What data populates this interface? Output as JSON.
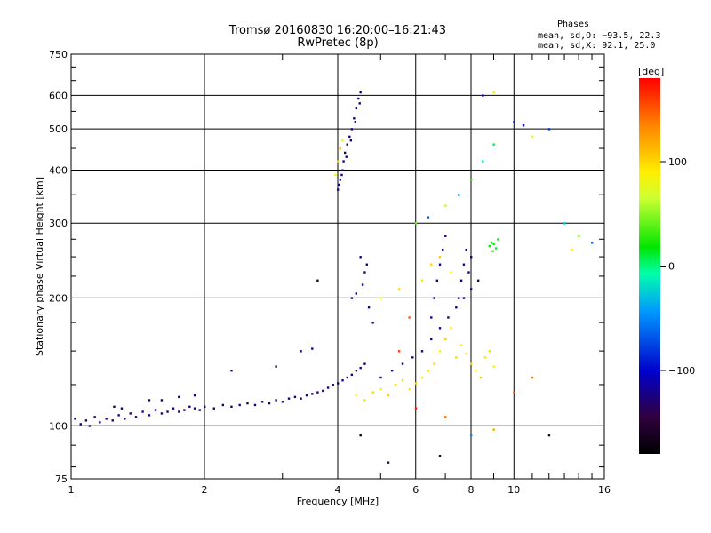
{
  "chart_data": {
    "type": "scatter",
    "title": "Tromsø 20160830 16:20:00–16:21:43",
    "subtitle": "RwPretec (8p)",
    "xlabel": "Frequency [MHz]",
    "ylabel": "Stationary phase Virtual Height [km]",
    "x_scale": "log",
    "y_scale": "log",
    "xlim": [
      1,
      16
    ],
    "ylim": [
      75,
      750
    ],
    "x_ticks": [
      1,
      2,
      4,
      6,
      8,
      10,
      16
    ],
    "x_tick_labels": [
      "1",
      "2",
      "4",
      "6",
      "8",
      "10",
      "16"
    ],
    "y_ticks": [
      75,
      100,
      200,
      300,
      400,
      500,
      600,
      750
    ],
    "y_tick_labels": [
      "75",
      "100",
      "200",
      "300",
      "400",
      "500",
      "600",
      "750"
    ],
    "grid": true,
    "phase_stats": {
      "title": "Phases",
      "line_o": "mean, sd,O: −93.5, 22.3",
      "line_x": "mean, sd,X:  92.1, 25.0"
    },
    "colorbar": {
      "label": "[deg]",
      "range": [
        -180,
        180
      ],
      "ticks": [
        100,
        0,
        -100
      ],
      "tick_labels": [
        "100",
        "0",
        "−100"
      ]
    },
    "series": [
      {
        "points": [
          [
            1.02,
            104,
            -120
          ],
          [
            1.05,
            101,
            -130
          ],
          [
            1.08,
            103,
            -140
          ],
          [
            1.1,
            100,
            -125
          ],
          [
            1.13,
            105,
            -135
          ],
          [
            1.16,
            102,
            -120
          ],
          [
            1.2,
            104,
            -130
          ],
          [
            1.24,
            103,
            -145
          ],
          [
            1.28,
            106,
            -125
          ],
          [
            1.32,
            104,
            -120
          ],
          [
            1.36,
            107,
            -130
          ],
          [
            1.4,
            105,
            -140
          ],
          [
            1.45,
            108,
            -125
          ],
          [
            1.5,
            106,
            -120
          ],
          [
            1.55,
            109,
            -130
          ],
          [
            1.6,
            107,
            -135
          ],
          [
            1.65,
            108,
            -125
          ],
          [
            1.7,
            110,
            -120
          ],
          [
            1.75,
            108,
            -130
          ],
          [
            1.8,
            109,
            -140
          ],
          [
            1.85,
            111,
            -125
          ],
          [
            1.9,
            110,
            -120
          ],
          [
            1.95,
            109,
            -130
          ],
          [
            2.0,
            111,
            -125
          ],
          [
            2.1,
            110,
            -135
          ],
          [
            2.2,
            112,
            -120
          ],
          [
            2.3,
            111,
            -130
          ],
          [
            2.4,
            112,
            -125
          ],
          [
            2.5,
            113,
            -140
          ],
          [
            2.6,
            112,
            -120
          ],
          [
            2.7,
            114,
            -130
          ],
          [
            2.8,
            113,
            -125
          ],
          [
            2.9,
            115,
            -135
          ],
          [
            3.0,
            114,
            -120
          ],
          [
            3.1,
            116,
            -130
          ],
          [
            3.2,
            117,
            -125
          ],
          [
            3.3,
            116,
            -140
          ],
          [
            3.4,
            118,
            -120
          ],
          [
            3.5,
            119,
            -130
          ],
          [
            3.6,
            120,
            -125
          ],
          [
            3.7,
            121,
            -135
          ],
          [
            3.8,
            123,
            -120
          ],
          [
            3.9,
            125,
            -130
          ],
          [
            4.0,
            126,
            -125
          ],
          [
            4.1,
            128,
            -120
          ],
          [
            4.2,
            130,
            -130
          ],
          [
            4.3,
            132,
            -125
          ],
          [
            4.4,
            135,
            -135
          ],
          [
            4.5,
            137,
            -120
          ],
          [
            4.6,
            140,
            -130
          ],
          [
            1.3,
            110,
            -125
          ],
          [
            1.6,
            115,
            -130
          ],
          [
            1.9,
            118,
            -120
          ],
          [
            2.3,
            135,
            -125
          ],
          [
            2.9,
            138,
            -130
          ],
          [
            3.3,
            150,
            -120
          ],
          [
            3.5,
            152,
            -125
          ],
          [
            1.25,
            111,
            -135
          ],
          [
            1.5,
            115,
            -128
          ],
          [
            1.75,
            117,
            -132
          ]
        ]
      },
      {
        "points": [
          [
            4.0,
            360,
            -120
          ],
          [
            4.05,
            380,
            -125
          ],
          [
            4.1,
            400,
            -130
          ],
          [
            4.12,
            420,
            -120
          ],
          [
            4.15,
            440,
            -125
          ],
          [
            4.2,
            460,
            -130
          ],
          [
            4.25,
            480,
            -120
          ],
          [
            4.3,
            500,
            -125
          ],
          [
            4.35,
            530,
            -130
          ],
          [
            4.4,
            560,
            -120
          ],
          [
            4.45,
            590,
            -125
          ],
          [
            4.5,
            610,
            -130
          ],
          [
            4.02,
            370,
            -118
          ],
          [
            4.08,
            390,
            -124
          ],
          [
            4.18,
            430,
            -126
          ],
          [
            4.28,
            470,
            -122
          ],
          [
            4.38,
            520,
            -128
          ],
          [
            4.48,
            575,
            -124
          ],
          [
            4.0,
            420,
            100
          ],
          [
            4.05,
            450,
            110
          ],
          [
            3.95,
            390,
            90
          ],
          [
            4.1,
            470,
            80
          ],
          [
            4.3,
            200,
            -125
          ],
          [
            4.4,
            205,
            -120
          ],
          [
            4.5,
            250,
            -130
          ],
          [
            4.6,
            230,
            -125
          ],
          [
            4.7,
            190,
            -120
          ],
          [
            4.8,
            175,
            -130
          ],
          [
            4.55,
            215,
            -118
          ],
          [
            4.65,
            240,
            -126
          ]
        ]
      },
      {
        "points": [
          [
            4.4,
            118,
            90
          ],
          [
            4.6,
            115,
            95
          ],
          [
            4.8,
            120,
            100
          ],
          [
            5.0,
            122,
            85
          ],
          [
            5.2,
            118,
            105
          ],
          [
            5.4,
            125,
            95
          ],
          [
            5.6,
            128,
            100
          ],
          [
            5.8,
            122,
            90
          ],
          [
            6.0,
            126,
            100
          ],
          [
            6.2,
            130,
            85
          ],
          [
            6.4,
            135,
            95
          ],
          [
            6.6,
            140,
            100
          ],
          [
            6.8,
            150,
            90
          ],
          [
            7.0,
            160,
            105
          ],
          [
            7.2,
            170,
            95
          ],
          [
            7.4,
            145,
            100
          ],
          [
            7.6,
            155,
            85
          ],
          [
            7.8,
            148,
            95
          ],
          [
            8.0,
            140,
            100
          ],
          [
            8.2,
            135,
            90
          ],
          [
            8.4,
            130,
            105
          ],
          [
            8.6,
            145,
            95
          ],
          [
            8.8,
            150,
            100
          ],
          [
            9.0,
            138,
            85
          ],
          [
            5.0,
            200,
            90
          ],
          [
            5.5,
            210,
            100
          ],
          [
            6.2,
            220,
            95
          ],
          [
            6.5,
            240,
            100
          ],
          [
            6.8,
            250,
            105
          ],
          [
            7.2,
            230,
            90
          ]
        ]
      },
      {
        "points": [
          [
            5.0,
            130,
            -120
          ],
          [
            5.3,
            135,
            -125
          ],
          [
            5.6,
            140,
            -130
          ],
          [
            5.9,
            145,
            -120
          ],
          [
            6.2,
            150,
            -125
          ],
          [
            6.5,
            160,
            -130
          ],
          [
            6.8,
            170,
            -120
          ],
          [
            7.1,
            180,
            -125
          ],
          [
            7.4,
            190,
            -130
          ],
          [
            7.7,
            200,
            -120
          ],
          [
            8.0,
            210,
            -125
          ],
          [
            8.3,
            220,
            -130
          ],
          [
            6.5,
            180,
            -110
          ],
          [
            6.6,
            200,
            -115
          ],
          [
            6.7,
            220,
            -120
          ],
          [
            6.8,
            240,
            -125
          ],
          [
            6.9,
            260,
            -110
          ],
          [
            7.0,
            280,
            -115
          ],
          [
            7.5,
            200,
            -120
          ],
          [
            7.6,
            220,
            -125
          ],
          [
            7.7,
            240,
            -110
          ],
          [
            7.8,
            260,
            -115
          ],
          [
            7.9,
            230,
            -120
          ],
          [
            8.0,
            250,
            -125
          ]
        ]
      },
      {
        "points": [
          [
            8.8,
            265,
            20
          ],
          [
            8.9,
            270,
            15
          ],
          [
            9.0,
            268,
            25
          ],
          [
            9.1,
            262,
            10
          ],
          [
            9.2,
            275,
            20
          ],
          [
            8.95,
            258,
            30
          ],
          [
            6.0,
            300,
            40
          ],
          [
            6.4,
            310,
            -60
          ],
          [
            7.0,
            330,
            60
          ],
          [
            7.5,
            350,
            -40
          ],
          [
            8.0,
            380,
            30
          ],
          [
            8.5,
            420,
            -20
          ],
          [
            9.0,
            460,
            10
          ],
          [
            10.0,
            520,
            -90
          ],
          [
            10.5,
            510,
            -100
          ],
          [
            11.0,
            480,
            70
          ],
          [
            12.0,
            500,
            -80
          ],
          [
            13.0,
            300,
            -30
          ],
          [
            14.0,
            280,
            50
          ],
          [
            15.0,
            270,
            -70
          ],
          [
            8.5,
            600,
            -110
          ],
          [
            9.0,
            610,
            80
          ],
          [
            5.8,
            180,
            150
          ],
          [
            5.5,
            150,
            160
          ],
          [
            6.0,
            110,
            170
          ],
          [
            7.0,
            105,
            140
          ],
          [
            8.0,
            95,
            -50
          ],
          [
            9.0,
            98,
            120
          ],
          [
            10.0,
            120,
            160
          ],
          [
            11.0,
            130,
            140
          ],
          [
            12.0,
            95,
            -150
          ],
          [
            13.5,
            260,
            90
          ],
          [
            6.8,
            85,
            -160
          ],
          [
            5.2,
            82,
            -140
          ],
          [
            4.5,
            95,
            -170
          ],
          [
            3.6,
            220,
            -160
          ]
        ]
      }
    ]
  }
}
